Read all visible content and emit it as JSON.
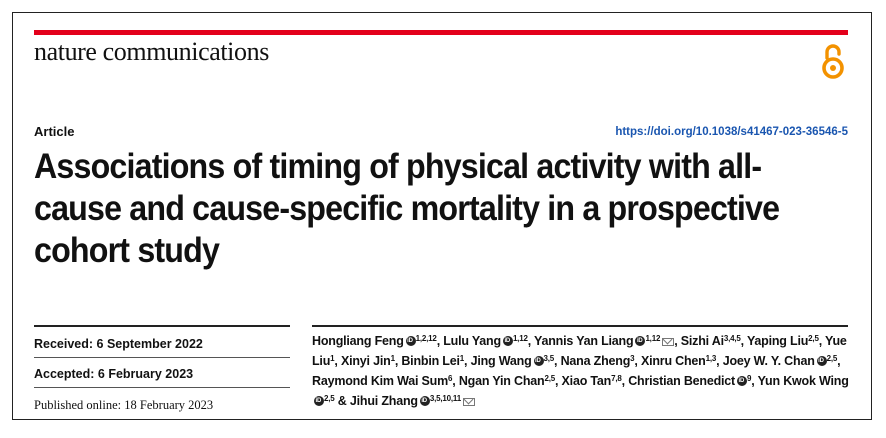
{
  "journal": "nature communications",
  "article_type": "Article",
  "doi": "https://doi.org/10.1038/s41467-023-36546-5",
  "title": "Associations of timing of physical activity with all-cause and cause-specific mortality in a prospective cohort study",
  "dates": {
    "received": "Received: 6 September 2022",
    "accepted": "Accepted: 6 February 2023",
    "published": "Published online: 18 February 2023"
  },
  "authors": [
    {
      "name": "Hongliang Feng",
      "sup": "1,2,12",
      "orcid": true,
      "sep": ", "
    },
    {
      "name": "Lulu Yang",
      "sup": "1,12",
      "orcid": true,
      "sep": ", "
    },
    {
      "name": "Yannis Yan Liang",
      "sup": "1,12",
      "orcid": true,
      "mail": true,
      "sep": ", "
    },
    {
      "name": "Sizhi Ai",
      "sup": "3,4,5",
      "sep": ", "
    },
    {
      "name": "Yaping Liu",
      "sup": "2,5",
      "sep": ", "
    },
    {
      "name": "Yue Liu",
      "sup": "1",
      "sep": ", "
    },
    {
      "name": "Xinyi Jin",
      "sup": "1",
      "sep": ", "
    },
    {
      "name": "Binbin Lei",
      "sup": "1",
      "sep": ", "
    },
    {
      "name": "Jing Wang",
      "sup": "3,5",
      "orcid": true,
      "sep": ", "
    },
    {
      "name": "Nana Zheng",
      "sup": "3",
      "sep": ", "
    },
    {
      "name": "Xinru Chen",
      "sup": "1,3",
      "sep": ", "
    },
    {
      "name": "Joey W. Y. Chan",
      "sup": "2,5",
      "orcid": true,
      "sep": ", "
    },
    {
      "name": "Raymond Kim Wai Sum",
      "sup": "6",
      "sep": ", "
    },
    {
      "name": "Ngan Yin Chan",
      "sup": "2,5",
      "sep": ", "
    },
    {
      "name": "Xiao Tan",
      "sup": "7,8",
      "sep": ", "
    },
    {
      "name": "Christian Benedict",
      "sup": "9",
      "orcid": true,
      "sep": ", "
    },
    {
      "name": "Yun Kwok Wing",
      "sup": "2,5",
      "orcid": true,
      "sep": " & "
    },
    {
      "name": "Jihui Zhang",
      "sup": "3,5,10,11",
      "orcid": true,
      "mail": true,
      "sep": ""
    }
  ],
  "colors": {
    "accent_red": "#e3001b",
    "doi_blue": "#1a56b0",
    "oa_orange": "#f39200"
  },
  "icons": {
    "open_access": "open-access-icon",
    "orcid": "orcid-icon",
    "email": "mail-icon"
  }
}
